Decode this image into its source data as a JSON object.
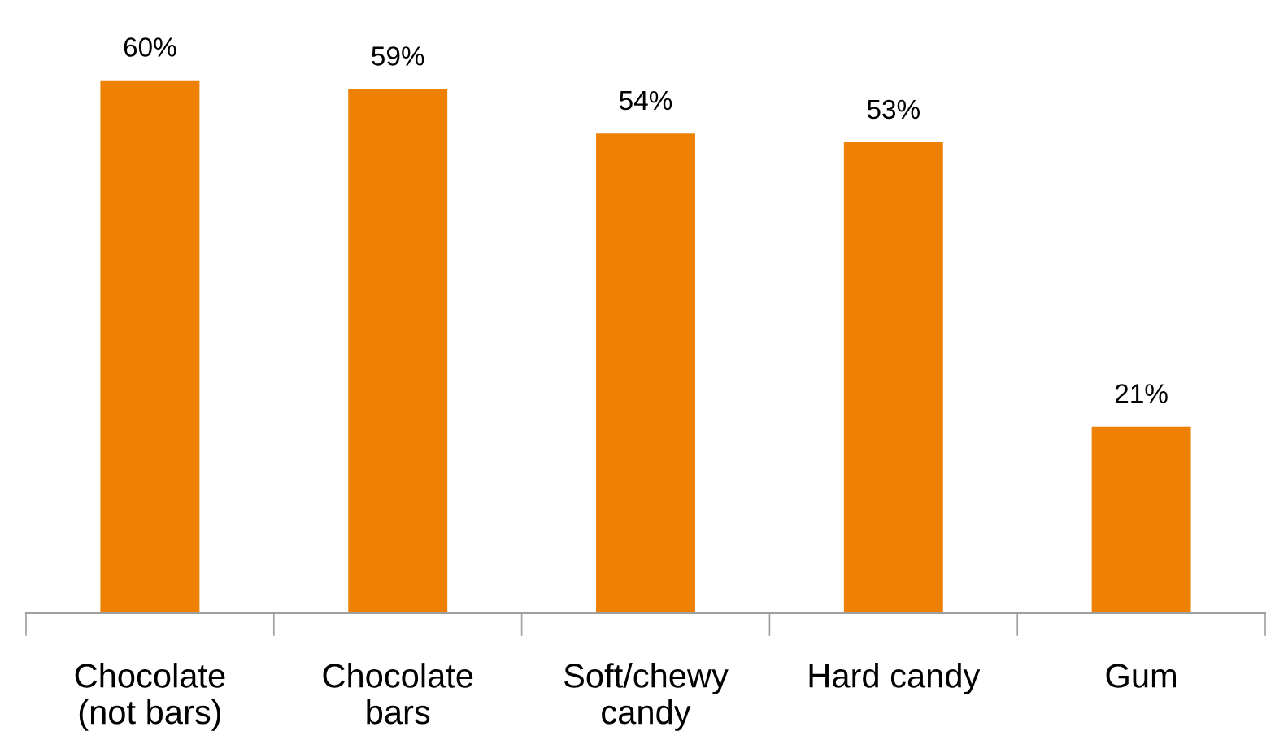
{
  "chart_data": {
    "type": "bar",
    "categories": [
      "Chocolate\n(not bars)",
      "Chocolate\nbars",
      "Soft/chewy\ncandy",
      "Hard candy",
      "Gum"
    ],
    "values": [
      60,
      59,
      54,
      53,
      21
    ],
    "value_labels": [
      "60%",
      "59%",
      "54%",
      "53%",
      "21%"
    ],
    "color": "#ee8104",
    "grid": false,
    "legend": false
  }
}
